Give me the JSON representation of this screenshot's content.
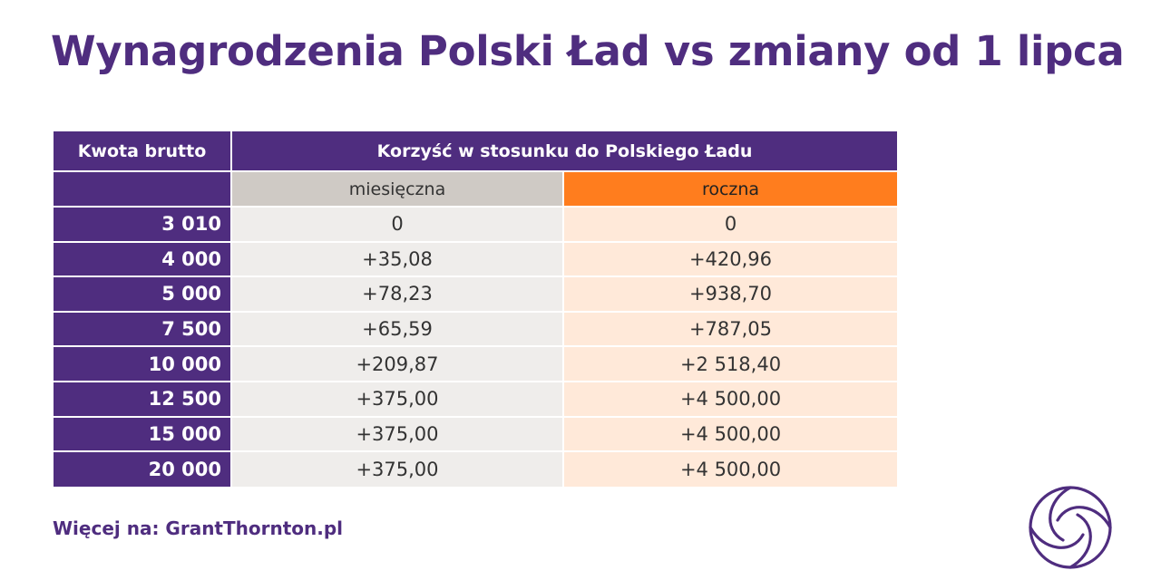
{
  "title": "Wynagrodzenia Polski Ład vs zmiany od 1 lipca",
  "chart_data": {
    "type": "table",
    "columns": {
      "amount_header": "Kwota brutto",
      "group_header": "Korzyść w stosunku do Polskiego Ładu",
      "monthly_header": "miesięczna",
      "yearly_header": "roczna"
    },
    "rows": [
      {
        "amount": "3 010",
        "monthly": "0",
        "yearly": "0"
      },
      {
        "amount": "4 000",
        "monthly": "+35,08",
        "yearly": "+420,96"
      },
      {
        "amount": "5 000",
        "monthly": "+78,23",
        "yearly": "+938,70"
      },
      {
        "amount": "7 500",
        "monthly": "+65,59",
        "yearly": "+787,05"
      },
      {
        "amount": "10 000",
        "monthly": "+209,87",
        "yearly": "+2 518,40"
      },
      {
        "amount": "12 500",
        "monthly": "+375,00",
        "yearly": "+4 500,00"
      },
      {
        "amount": "15 000",
        "monthly": "+375,00",
        "yearly": "+4 500,00"
      },
      {
        "amount": "20 000",
        "monthly": "+375,00",
        "yearly": "+4 500,00"
      }
    ]
  },
  "footer": "Więcej na: GrantThornton.pl",
  "logo": {
    "icon": "grant-thornton-swirl-icon"
  },
  "colors": {
    "brand_purple": "#4f2d7f",
    "monthly_header_bg": "#cfcac5",
    "yearly_header_bg": "#ff7d1e",
    "monthly_cell_bg": "#efedeb",
    "yearly_cell_bg": "#ffe9d9"
  }
}
